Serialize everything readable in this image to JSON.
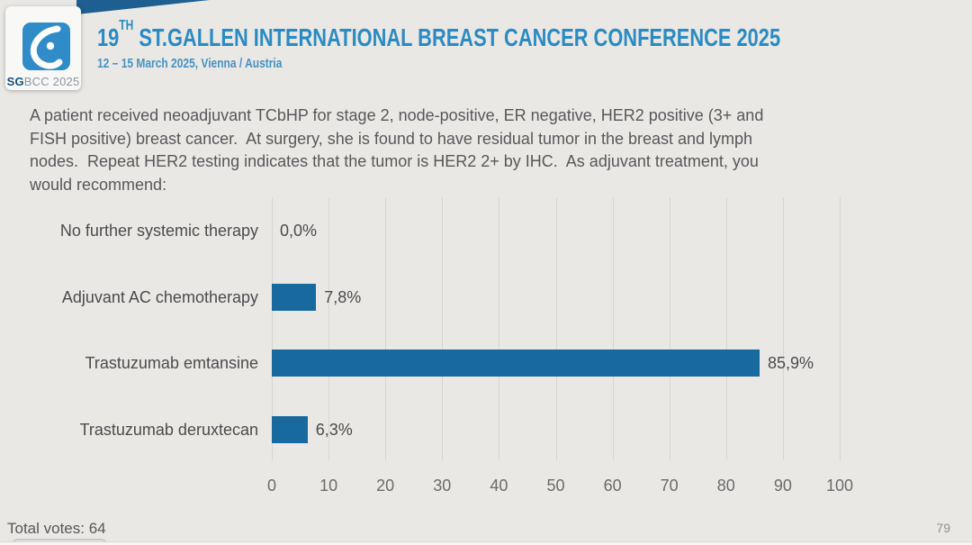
{
  "header": {
    "logo_sg": "SG",
    "logo_rest": "BCC 2025",
    "title_prefix": "19",
    "title_sup": "TH",
    "title_rest": " ST.GALLEN INTERNATIONAL BREAST CANCER CONFERENCE 2025",
    "subtitle": "12 – 15 March 2025, Vienna / Austria"
  },
  "question": {
    "lines": [
      "A patient received neoadjuvant TCbHP for stage 2, node-positive, ER negative, HER2 positive (3+ and",
      "FISH positive) breast cancer.  At surgery, she is found to have residual tumor in the breast and lymph",
      "nodes.  Repeat HER2 testing indicates that the tumor is HER2 2+ by IHC.  As adjuvant treatment, you",
      "would recommend:"
    ]
  },
  "chart_data": {
    "type": "bar",
    "orientation": "horizontal",
    "categories": [
      "No further systemic therapy",
      "Adjuvant AC chemotherapy",
      "Trastuzumab emtansine",
      "Trastuzumab deruxtecan"
    ],
    "values": [
      0.0,
      7.8,
      85.9,
      6.3
    ],
    "value_labels": [
      "0,0%",
      "7,8%",
      "85,9%",
      "6,3%"
    ],
    "x_ticks": [
      0,
      10,
      20,
      30,
      40,
      50,
      60,
      70,
      80,
      90,
      100
    ],
    "xlim": [
      0,
      100
    ],
    "bar_color": "#17699e",
    "grid": true,
    "legend": "none"
  },
  "footer": {
    "total_votes": "Total votes: 64",
    "page_number": "79"
  },
  "colors": {
    "background": "#e9e8e5",
    "accent_blue": "#2b8ac3",
    "navy_wedge": "#1e5e90",
    "logo_blue": "#2f8cc8",
    "bar_blue": "#17699e",
    "gridline": "#d7d5d2",
    "text_dark": "#4b4b4d"
  }
}
